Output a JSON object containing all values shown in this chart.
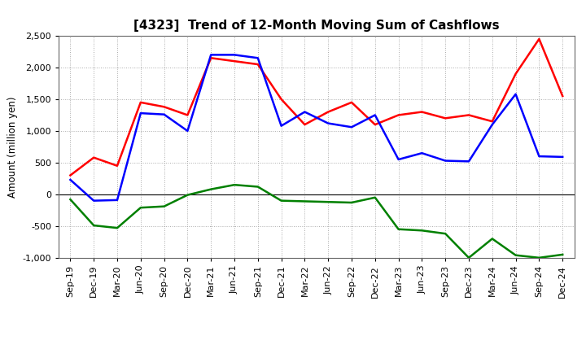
{
  "title": "[4323]  Trend of 12-Month Moving Sum of Cashflows",
  "ylabel": "Amount (million yen)",
  "background_color": "#ffffff",
  "grid_color": "#aaaaaa",
  "xlabels": [
    "Sep-19",
    "Dec-19",
    "Mar-20",
    "Jun-20",
    "Sep-20",
    "Dec-20",
    "Mar-21",
    "Jun-21",
    "Sep-21",
    "Dec-21",
    "Mar-22",
    "Jun-22",
    "Sep-22",
    "Dec-22",
    "Mar-23",
    "Jun-23",
    "Sep-23",
    "Dec-23",
    "Mar-24",
    "Jun-24",
    "Sep-24",
    "Dec-24"
  ],
  "operating": [
    300,
    580,
    450,
    1450,
    1380,
    1250,
    2150,
    2100,
    2050,
    1500,
    1100,
    1300,
    1450,
    1100,
    1250,
    1300,
    1200,
    1250,
    1150,
    1900,
    2450,
    1550
  ],
  "investing": [
    -80,
    -490,
    -530,
    -210,
    -190,
    -10,
    80,
    150,
    120,
    -100,
    -110,
    -120,
    -130,
    -50,
    -550,
    -570,
    -620,
    -1000,
    -700,
    -960,
    -1000,
    -950
  ],
  "free": [
    230,
    -100,
    -90,
    1280,
    1260,
    1000,
    2200,
    2200,
    2150,
    1080,
    1300,
    1120,
    1060,
    1250,
    550,
    650,
    530,
    520,
    1100,
    1580,
    600,
    590
  ],
  "ylim": [
    -1000,
    2500
  ],
  "yticks": [
    -1000,
    -500,
    0,
    500,
    1000,
    1500,
    2000,
    2500
  ],
  "operating_color": "#ff0000",
  "investing_color": "#008000",
  "free_color": "#0000ff",
  "line_width": 1.8,
  "title_fontsize": 11,
  "axis_fontsize": 8,
  "ylabel_fontsize": 8.5,
  "legend_fontsize": 8.5
}
